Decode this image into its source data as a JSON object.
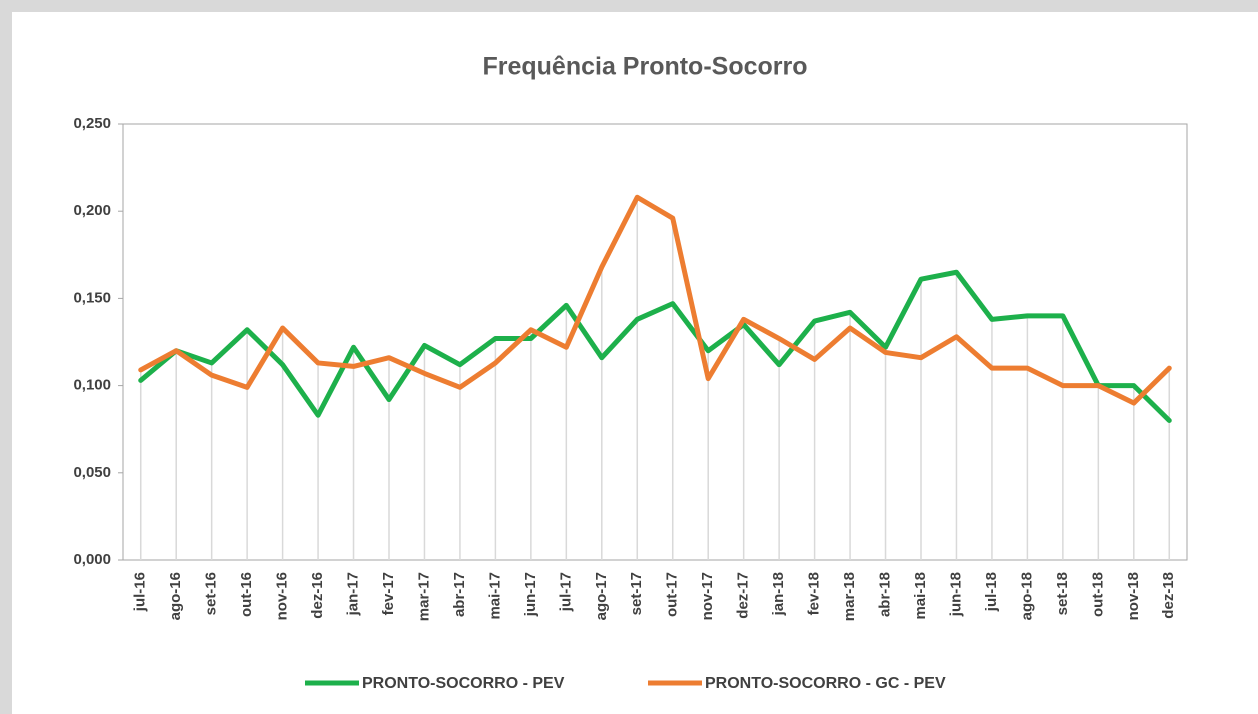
{
  "chart_data": {
    "type": "line",
    "title": "Frequência  Pronto-Socorro",
    "categories": [
      "jul-16",
      "ago-16",
      "set-16",
      "out-16",
      "nov-16",
      "dez-16",
      "jan-17",
      "fev-17",
      "mar-17",
      "abr-17",
      "mai-17",
      "jun-17",
      "jul-17",
      "ago-17",
      "set-17",
      "out-17",
      "nov-17",
      "dez-17",
      "jan-18",
      "fev-18",
      "mar-18",
      "abr-18",
      "mai-18",
      "jun-18",
      "jul-18",
      "ago-18",
      "set-18",
      "out-18",
      "nov-18",
      "dez-18"
    ],
    "series": [
      {
        "name": "PRONTO-SOCORRO - PEV",
        "color": "#1db04b",
        "values": [
          0.103,
          0.12,
          0.113,
          0.132,
          0.112,
          0.083,
          0.122,
          0.092,
          0.123,
          0.112,
          0.127,
          0.127,
          0.146,
          0.116,
          0.138,
          0.147,
          0.12,
          0.135,
          0.112,
          0.137,
          0.142,
          0.122,
          0.161,
          0.165,
          0.138,
          0.14,
          0.14,
          0.1,
          0.1,
          0.08
        ]
      },
      {
        "name": "PRONTO-SOCORRO - GC - PEV",
        "color": "#ed7d31",
        "values": [
          0.109,
          0.12,
          0.106,
          0.099,
          0.133,
          0.113,
          0.111,
          0.116,
          0.107,
          0.099,
          0.113,
          0.132,
          0.122,
          0.168,
          0.208,
          0.196,
          0.104,
          0.138,
          0.127,
          0.115,
          0.133,
          0.119,
          0.116,
          0.128,
          0.11,
          0.11,
          0.1,
          0.1,
          0.09,
          0.11
        ]
      }
    ],
    "ylim": [
      0,
      0.25
    ],
    "yticks": [
      {
        "value": 0,
        "label": "0,000"
      },
      {
        "value": 0.05,
        "label": "0,050"
      },
      {
        "value": 0.1,
        "label": "0,100"
      },
      {
        "value": 0.15,
        "label": "0,150"
      },
      {
        "value": 0.2,
        "label": "0,200"
      },
      {
        "value": 0.25,
        "label": "0,250"
      }
    ],
    "drop_lines": true,
    "legend": "bottom"
  }
}
